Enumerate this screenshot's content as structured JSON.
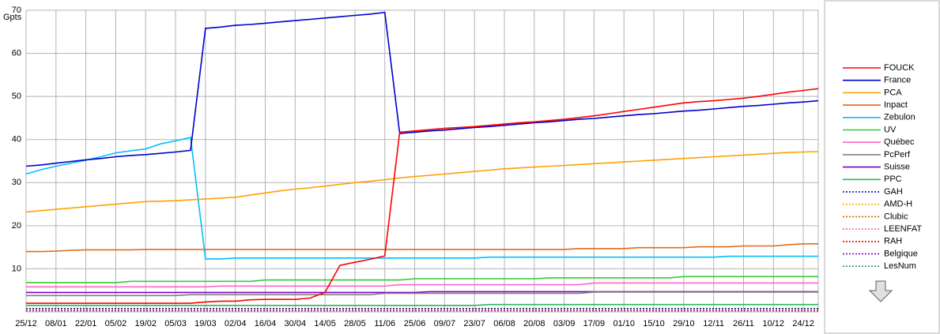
{
  "chart_data": {
    "type": "line",
    "y_label": "Gpts",
    "categories": [
      "25/12",
      null,
      "08/01",
      null,
      "22/01",
      null,
      "05/02",
      null,
      "19/02",
      null,
      "05/03",
      null,
      "19/03",
      null,
      "02/04",
      null,
      "16/04",
      null,
      "30/04",
      null,
      "14/05",
      null,
      "28/05",
      null,
      "11/06",
      null,
      "25/06",
      null,
      "09/07",
      null,
      "23/07",
      null,
      "06/08",
      null,
      "20/08",
      null,
      "03/09",
      null,
      "17/09",
      null,
      "01/10",
      null,
      "15/10",
      null,
      "29/10",
      null,
      "12/11",
      null,
      "26/11",
      null,
      "10/12",
      null,
      "24/12",
      null
    ],
    "ylim": [
      0,
      70
    ],
    "yticks": [
      10,
      20,
      30,
      40,
      50,
      60,
      70
    ],
    "grid": true,
    "legend": "right",
    "series": [
      {
        "name": "FOUCK",
        "color": "#ff0000",
        "style": "solid",
        "values": [
          2.0,
          2.0,
          2.0,
          2.0,
          2.0,
          2.0,
          2.0,
          2.0,
          2.0,
          2.0,
          2.0,
          2.0,
          2.3,
          2.5,
          2.5,
          2.8,
          2.9,
          2.9,
          2.9,
          3.2,
          4.5,
          10.8,
          11.5,
          12.2,
          13.0,
          41.7,
          42.0,
          42.3,
          42.6,
          42.8,
          43.0,
          43.3,
          43.6,
          43.9,
          44.1,
          44.4,
          44.7,
          45.1,
          45.5,
          46.0,
          46.5,
          47.0,
          47.5,
          48.0,
          48.5,
          48.8,
          49.0,
          49.3,
          49.6,
          50.0,
          50.5,
          51.0,
          51.4,
          51.8
        ]
      },
      {
        "name": "France",
        "color": "#0000cc",
        "style": "solid",
        "values": [
          33.8,
          34.1,
          34.5,
          34.9,
          35.3,
          35.6,
          36.0,
          36.3,
          36.5,
          36.8,
          37.1,
          37.5,
          65.8,
          66.1,
          66.5,
          66.7,
          67.0,
          67.3,
          67.6,
          67.9,
          68.2,
          68.5,
          68.8,
          69.1,
          69.5,
          41.4,
          41.7,
          42.0,
          42.2,
          42.5,
          42.8,
          43.0,
          43.3,
          43.6,
          43.9,
          44.1,
          44.4,
          44.7,
          44.9,
          45.2,
          45.5,
          45.8,
          46.0,
          46.3,
          46.6,
          46.8,
          47.1,
          47.4,
          47.7,
          47.9,
          48.2,
          48.5,
          48.7,
          49.0
        ]
      },
      {
        "name": "PCA",
        "color": "#ffa000",
        "style": "solid",
        "values": [
          23.2,
          23.5,
          23.8,
          24.1,
          24.4,
          24.7,
          25.0,
          25.3,
          25.6,
          25.7,
          25.8,
          26.0,
          26.2,
          26.4,
          26.6,
          27.1,
          27.6,
          28.1,
          28.5,
          28.8,
          29.2,
          29.6,
          30.0,
          30.3,
          30.7,
          31.1,
          31.4,
          31.7,
          32.0,
          32.3,
          32.6,
          32.9,
          33.2,
          33.4,
          33.6,
          33.8,
          34.0,
          34.2,
          34.4,
          34.6,
          34.8,
          35.0,
          35.2,
          35.4,
          35.6,
          35.8,
          36.0,
          36.2,
          36.4,
          36.6,
          36.8,
          37.0,
          37.1,
          37.2
        ]
      },
      {
        "name": "Inpact",
        "color": "#e06a1e",
        "style": "solid",
        "values": [
          14.0,
          14.0,
          14.1,
          14.3,
          14.4,
          14.4,
          14.4,
          14.4,
          14.5,
          14.5,
          14.5,
          14.5,
          14.5,
          14.5,
          14.5,
          14.5,
          14.5,
          14.5,
          14.5,
          14.5,
          14.5,
          14.5,
          14.5,
          14.5,
          14.5,
          14.5,
          14.5,
          14.5,
          14.5,
          14.5,
          14.5,
          14.5,
          14.5,
          14.5,
          14.5,
          14.5,
          14.5,
          14.7,
          14.7,
          14.7,
          14.7,
          14.9,
          14.9,
          14.9,
          14.9,
          15.1,
          15.1,
          15.1,
          15.3,
          15.3,
          15.3,
          15.6,
          15.8,
          15.8
        ]
      },
      {
        "name": "Zebulon",
        "color": "#00bfff",
        "style": "solid",
        "values": [
          32.0,
          33.0,
          33.8,
          34.5,
          35.2,
          36.0,
          36.9,
          37.4,
          37.8,
          39.0,
          39.7,
          40.5,
          12.3,
          12.3,
          12.5,
          12.5,
          12.5,
          12.5,
          12.5,
          12.5,
          12.5,
          12.5,
          12.5,
          12.5,
          12.5,
          12.5,
          12.5,
          12.5,
          12.5,
          12.5,
          12.5,
          12.7,
          12.7,
          12.7,
          12.7,
          12.7,
          12.7,
          12.7,
          12.7,
          12.7,
          12.7,
          12.7,
          12.7,
          12.7,
          12.7,
          12.7,
          12.7,
          12.9,
          12.9,
          12.9,
          12.9,
          12.9,
          12.9,
          12.9
        ]
      },
      {
        "name": "UV",
        "color": "#33cc33",
        "style": "solid",
        "values": [
          6.8,
          6.8,
          6.8,
          6.8,
          6.8,
          6.8,
          6.8,
          7.1,
          7.1,
          7.1,
          7.1,
          7.1,
          7.1,
          7.1,
          7.1,
          7.1,
          7.4,
          7.4,
          7.4,
          7.4,
          7.4,
          7.4,
          7.4,
          7.4,
          7.4,
          7.4,
          7.7,
          7.7,
          7.7,
          7.7,
          7.7,
          7.7,
          7.7,
          7.7,
          7.7,
          7.9,
          7.9,
          7.9,
          7.9,
          7.9,
          7.9,
          7.9,
          7.9,
          7.9,
          8.2,
          8.2,
          8.2,
          8.2,
          8.2,
          8.2,
          8.2,
          8.2,
          8.2,
          8.2
        ]
      },
      {
        "name": "Québec",
        "color": "#ff66cc",
        "style": "solid",
        "values": [
          5.8,
          5.8,
          5.8,
          5.8,
          5.8,
          5.8,
          5.8,
          5.8,
          5.8,
          5.8,
          5.8,
          5.8,
          5.8,
          6.0,
          6.0,
          6.0,
          6.0,
          6.0,
          6.0,
          6.0,
          6.0,
          6.0,
          6.0,
          6.0,
          6.0,
          6.3,
          6.3,
          6.3,
          6.3,
          6.3,
          6.3,
          6.3,
          6.3,
          6.3,
          6.3,
          6.3,
          6.3,
          6.3,
          6.7,
          6.7,
          6.7,
          6.7,
          6.7,
          6.7,
          6.7,
          6.7,
          6.7,
          6.7,
          6.7,
          6.7,
          6.7,
          6.7,
          6.7,
          6.7
        ]
      },
      {
        "name": "PcPerf",
        "color": "#808080",
        "style": "solid",
        "values": [
          3.8,
          3.8,
          3.8,
          3.8,
          3.8,
          3.8,
          3.8,
          3.8,
          3.8,
          3.8,
          3.8,
          4.0,
          4.0,
          4.0,
          4.0,
          4.0,
          4.0,
          4.0,
          4.0,
          4.0,
          4.0,
          4.0,
          4.0,
          4.0,
          4.3,
          4.3,
          4.3,
          4.3,
          4.3,
          4.3,
          4.3,
          4.3,
          4.3,
          4.3,
          4.3,
          4.3,
          4.3,
          4.3,
          4.6,
          4.6,
          4.6,
          4.6,
          4.6,
          4.6,
          4.6,
          4.6,
          4.6,
          4.6,
          4.6,
          4.6,
          4.6,
          4.6,
          4.6,
          4.6
        ]
      },
      {
        "name": "Suisse",
        "color": "#8000c0",
        "style": "solid",
        "values": [
          4.5,
          4.5,
          4.5,
          4.5,
          4.5,
          4.5,
          4.5,
          4.5,
          4.5,
          4.5,
          4.5,
          4.5,
          4.5,
          4.5,
          4.5,
          4.5,
          4.5,
          4.5,
          4.5,
          4.5,
          4.5,
          4.5,
          4.5,
          4.5,
          4.5,
          4.5,
          4.5,
          4.7,
          4.7,
          4.7,
          4.7,
          4.7,
          4.7,
          4.7,
          4.7,
          4.7,
          4.7,
          4.7,
          4.7,
          4.7,
          4.7,
          4.7,
          4.7,
          4.7,
          4.7,
          4.7,
          4.7,
          4.7,
          4.7,
          4.7,
          4.7,
          4.7,
          4.7,
          4.7
        ]
      },
      {
        "name": "PPC",
        "color": "#22bb55",
        "style": "solid",
        "values": [
          1.5,
          1.5,
          1.5,
          1.5,
          1.5,
          1.5,
          1.5,
          1.5,
          1.5,
          1.5,
          1.5,
          1.5,
          1.5,
          1.5,
          1.5,
          1.5,
          1.5,
          1.5,
          1.5,
          1.5,
          1.5,
          1.5,
          1.5,
          1.5,
          1.5,
          1.5,
          1.5,
          1.5,
          1.5,
          1.5,
          1.5,
          1.7,
          1.7,
          1.7,
          1.7,
          1.7,
          1.7,
          1.7,
          1.7,
          1.7,
          1.7,
          1.7,
          1.7,
          1.7,
          1.7,
          1.7,
          1.7,
          1.7,
          1.7,
          1.7,
          1.7,
          1.7,
          1.7,
          1.7
        ]
      },
      {
        "name": "GAH",
        "color": "#0000aa",
        "style": "dotted",
        "values": [
          0.8,
          0.8,
          0.8,
          0.8,
          0.8,
          0.8,
          0.8,
          0.8,
          0.8,
          0.8,
          0.8,
          0.8,
          0.8,
          0.8,
          0.8,
          0.8,
          0.8,
          0.8,
          0.8,
          0.8,
          0.8,
          0.8,
          0.8,
          0.8,
          0.8,
          0.8,
          0.8,
          0.8,
          0.8,
          0.8,
          0.8,
          0.8,
          0.8,
          0.8,
          0.8,
          0.8,
          0.8,
          0.8,
          0.8,
          0.8,
          0.8,
          0.8,
          0.8,
          0.8,
          0.8,
          0.8,
          0.8,
          0.8,
          0.8,
          0.8,
          0.8,
          0.8,
          0.8,
          0.8
        ]
      },
      {
        "name": "AMD-H",
        "color": "#ffaa00",
        "style": "dotted",
        "values": [
          0.6,
          0.6,
          0.6,
          0.6,
          0.6,
          0.6,
          0.6,
          0.6,
          0.6,
          0.6,
          0.6,
          0.6,
          0.6,
          0.6,
          0.6,
          0.6,
          0.6,
          0.6,
          0.6,
          0.6,
          0.6,
          0.6,
          0.6,
          0.6,
          0.6,
          0.6,
          0.6,
          0.6,
          0.6,
          0.6,
          0.6,
          0.6,
          0.6,
          0.6,
          0.6,
          0.6,
          0.6,
          0.6,
          0.6,
          0.6,
          0.6,
          0.6,
          0.6,
          0.6,
          0.6,
          0.6,
          0.6,
          0.6,
          0.6,
          0.6,
          0.6,
          0.6,
          0.6,
          0.6
        ]
      },
      {
        "name": "Clubic",
        "color": "#cc6600",
        "style": "dotted",
        "values": [
          0.5,
          0.5,
          0.5,
          0.5,
          0.5,
          0.5,
          0.5,
          0.5,
          0.5,
          0.5,
          0.5,
          0.5,
          0.5,
          0.5,
          0.5,
          0.5,
          0.5,
          0.5,
          0.5,
          0.5,
          0.5,
          0.5,
          0.5,
          0.5,
          0.5,
          0.5,
          0.5,
          0.5,
          0.5,
          0.5,
          0.5,
          0.5,
          0.5,
          0.5,
          0.5,
          0.5,
          0.5,
          0.5,
          0.5,
          0.5,
          0.5,
          0.5,
          0.5,
          0.5,
          0.5,
          0.5,
          0.5,
          0.5,
          0.5,
          0.5,
          0.5,
          0.5,
          0.5,
          0.5
        ]
      },
      {
        "name": "LEENFAT",
        "color": "#ff66aa",
        "style": "dotted",
        "values": [
          0.4,
          0.4,
          0.4,
          0.4,
          0.4,
          0.4,
          0.4,
          0.4,
          0.4,
          0.4,
          0.4,
          0.4,
          0.4,
          0.4,
          0.4,
          0.4,
          0.4,
          0.4,
          0.4,
          0.4,
          0.4,
          0.4,
          0.4,
          0.4,
          0.4,
          0.4,
          0.4,
          0.4,
          0.4,
          0.4,
          0.4,
          0.4,
          0.4,
          0.4,
          0.4,
          0.4,
          0.4,
          0.4,
          0.4,
          0.4,
          0.4,
          0.4,
          0.4,
          0.4,
          0.4,
          0.4,
          0.4,
          0.4,
          0.4,
          0.4,
          0.4,
          0.4,
          0.4,
          0.4
        ]
      },
      {
        "name": "RAH",
        "color": "#ee0000",
        "style": "dotted",
        "values": [
          0.7,
          0.7,
          0.7,
          0.7,
          0.7,
          0.7,
          0.7,
          0.7,
          0.7,
          0.7,
          0.7,
          0.7,
          0.7,
          0.7,
          0.7,
          0.7,
          0.7,
          0.7,
          0.7,
          0.7,
          0.7,
          0.7,
          0.7,
          0.7,
          0.7,
          0.7,
          0.7,
          0.7,
          0.7,
          0.7,
          0.7,
          0.7,
          0.7,
          0.7,
          0.7,
          0.7,
          0.7,
          0.7,
          0.7,
          0.7,
          0.7,
          0.7,
          0.7,
          0.7,
          0.7,
          0.7,
          0.7,
          0.7,
          0.7,
          0.7,
          0.7,
          0.7,
          0.7,
          0.7
        ]
      },
      {
        "name": "Belgique",
        "color": "#6600cc",
        "style": "dotted",
        "values": [
          0.3,
          0.3,
          0.3,
          0.3,
          0.3,
          0.3,
          0.3,
          0.3,
          0.3,
          0.3,
          0.3,
          0.3,
          0.3,
          0.3,
          0.3,
          0.3,
          0.3,
          0.3,
          0.3,
          0.3,
          0.3,
          0.3,
          0.3,
          0.3,
          0.3,
          0.3,
          0.3,
          0.3,
          0.3,
          0.3,
          0.3,
          0.3,
          0.3,
          0.3,
          0.3,
          0.3,
          0.3,
          0.3,
          0.3,
          0.3,
          0.3,
          0.3,
          0.3,
          0.3,
          0.3,
          0.3,
          0.3,
          0.3,
          0.3,
          0.3,
          0.3,
          0.3,
          0.3,
          0.3
        ]
      },
      {
        "name": "LesNum",
        "color": "#339966",
        "style": "dotted",
        "values": [
          0.2,
          0.2,
          0.2,
          0.2,
          0.2,
          0.2,
          0.2,
          0.2,
          0.2,
          0.2,
          0.2,
          0.2,
          0.2,
          0.2,
          0.2,
          0.2,
          0.2,
          0.2,
          0.2,
          0.2,
          0.2,
          0.2,
          0.2,
          0.2,
          0.2,
          0.2,
          0.2,
          0.2,
          0.2,
          0.2,
          0.2,
          0.2,
          0.2,
          0.2,
          0.2,
          0.2,
          0.2,
          0.2,
          0.2,
          0.2,
          0.2,
          0.2,
          0.2,
          0.2,
          0.2,
          0.2,
          0.2,
          0.2,
          0.2,
          0.2,
          0.2,
          0.2,
          0.2,
          0.2
        ]
      }
    ]
  }
}
